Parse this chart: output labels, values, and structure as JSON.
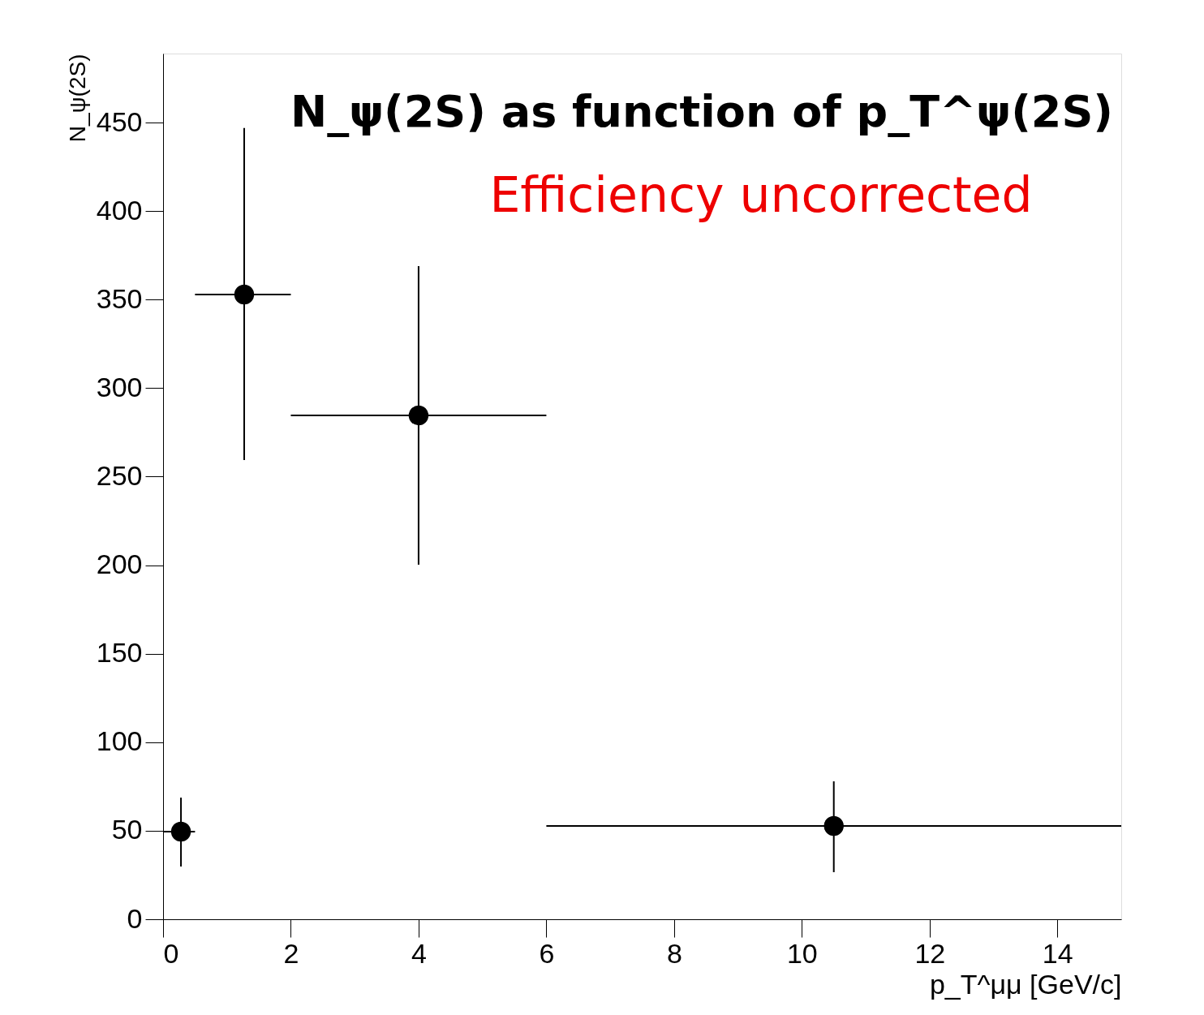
{
  "chart_data": {
    "type": "scatter",
    "xlabel": "p_T^μμ [GeV/c]",
    "ylabel": "N_ψ(2S)",
    "annotations": [
      "N_ψ(2S)  as function of p_T^ψ(2S)",
      "Efficiency uncorrected"
    ],
    "series": [
      {
        "color": "#000000",
        "x": [
          0.28,
          1.27,
          4.0,
          10.5
        ],
        "values": [
          49.5,
          352.9,
          284.6,
          52.7
        ],
        "errors": [
          [
            29.8,
            68.7
          ],
          [
            259.4,
            447
          ],
          [
            200.3,
            368.9
          ],
          [
            26.6,
            77.9
          ]
        ],
        "xerrors": [
          [
            0,
            0.5
          ],
          [
            0.5,
            2.0
          ],
          [
            2.0,
            6.0
          ],
          [
            6.0,
            15.0
          ]
        ]
      }
    ],
    "xlim": [
      0,
      15
    ],
    "ylim": [
      0,
      489
    ],
    "xticks": [
      0,
      2,
      4,
      6,
      8,
      10,
      12,
      14
    ],
    "yticks": [
      0,
      50,
      100,
      150,
      200,
      250,
      300,
      350,
      400,
      450
    ],
    "marker": "circle",
    "grid": false
  }
}
